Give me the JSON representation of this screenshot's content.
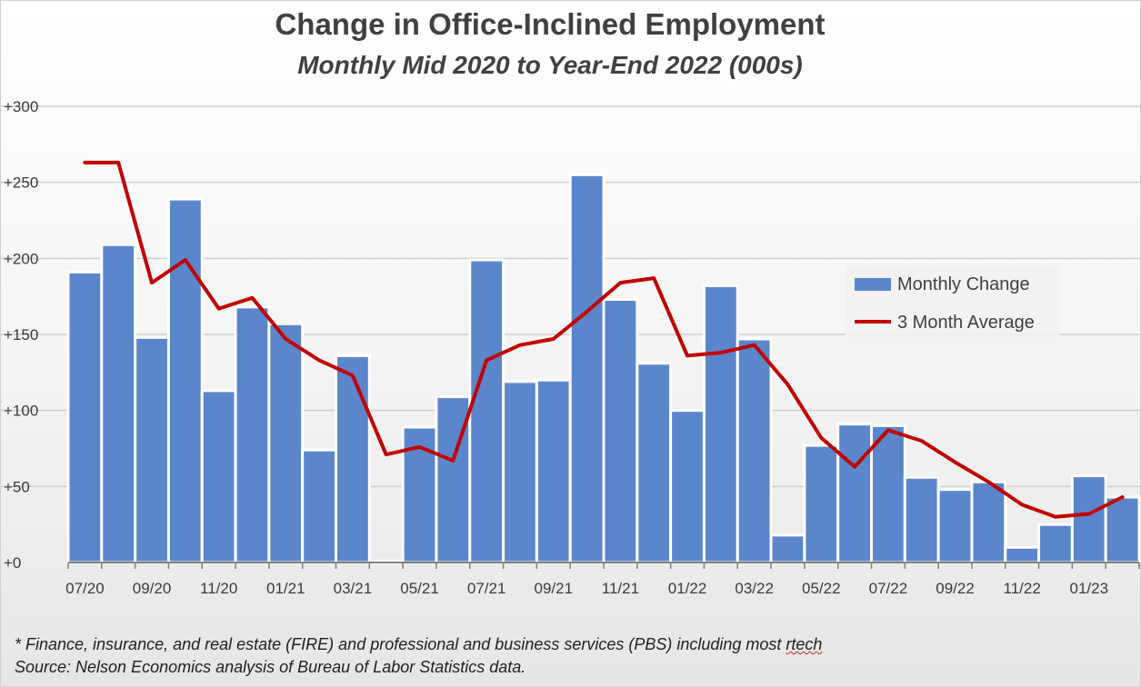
{
  "chart_data": {
    "type": "bar",
    "title": "Change in Office-Inclined Employment",
    "subtitle": "Monthly Mid 2020 to Year-End 2022 (000s)",
    "x_tick_labels": [
      "07/20",
      "09/20",
      "11/20",
      "01/21",
      "03/21",
      "05/21",
      "07/21",
      "09/21",
      "11/21",
      "01/22",
      "03/22",
      "05/22",
      "07/22",
      "09/22",
      "11/22",
      "01/23"
    ],
    "categories": [
      "07/20",
      "08/20",
      "09/20",
      "10/20",
      "11/20",
      "12/20",
      "01/21",
      "02/21",
      "03/21",
      "04/21",
      "05/21",
      "06/21",
      "07/21",
      "08/21",
      "09/21",
      "10/21",
      "11/21",
      "12/21",
      "01/22",
      "02/22",
      "03/22",
      "04/22",
      "05/22",
      "06/22",
      "07/22",
      "08/22",
      "09/22",
      "10/22",
      "11/22",
      "12/22",
      "01/23",
      "02/23"
    ],
    "y_tick_labels": [
      "+0",
      "+50",
      "+100",
      "+150",
      "+200",
      "+250",
      "+300"
    ],
    "ylim": [
      0,
      300
    ],
    "grid": true,
    "legend_position": "right",
    "series": [
      {
        "name": "Monthly Change",
        "type": "bar",
        "color": "#5b86cc",
        "values": [
          191,
          209,
          148,
          239,
          113,
          168,
          157,
          74,
          136,
          1,
          89,
          109,
          199,
          119,
          120,
          255,
          173,
          131,
          100,
          182,
          147,
          18,
          77,
          91,
          90,
          56,
          48,
          53,
          10,
          25,
          57,
          43
        ]
      },
      {
        "name": "3 Month Average",
        "type": "line",
        "color": "#c00000",
        "values": [
          263,
          263,
          184,
          199,
          167,
          174,
          147,
          133,
          123,
          71,
          76,
          67,
          133,
          143,
          147,
          165,
          184,
          187,
          136,
          138,
          143,
          117,
          82,
          63,
          87,
          80,
          66,
          53,
          38,
          30,
          32,
          43
        ]
      }
    ]
  },
  "footnotes": {
    "line1_main": "* Finance, insurance, and real estate (FIRE) and professional and business services (PBS)  including most ",
    "line1_flagged": "rtech",
    "line2": "Source: Nelson Economics analysis of Bureau of Labor Statistics data."
  }
}
